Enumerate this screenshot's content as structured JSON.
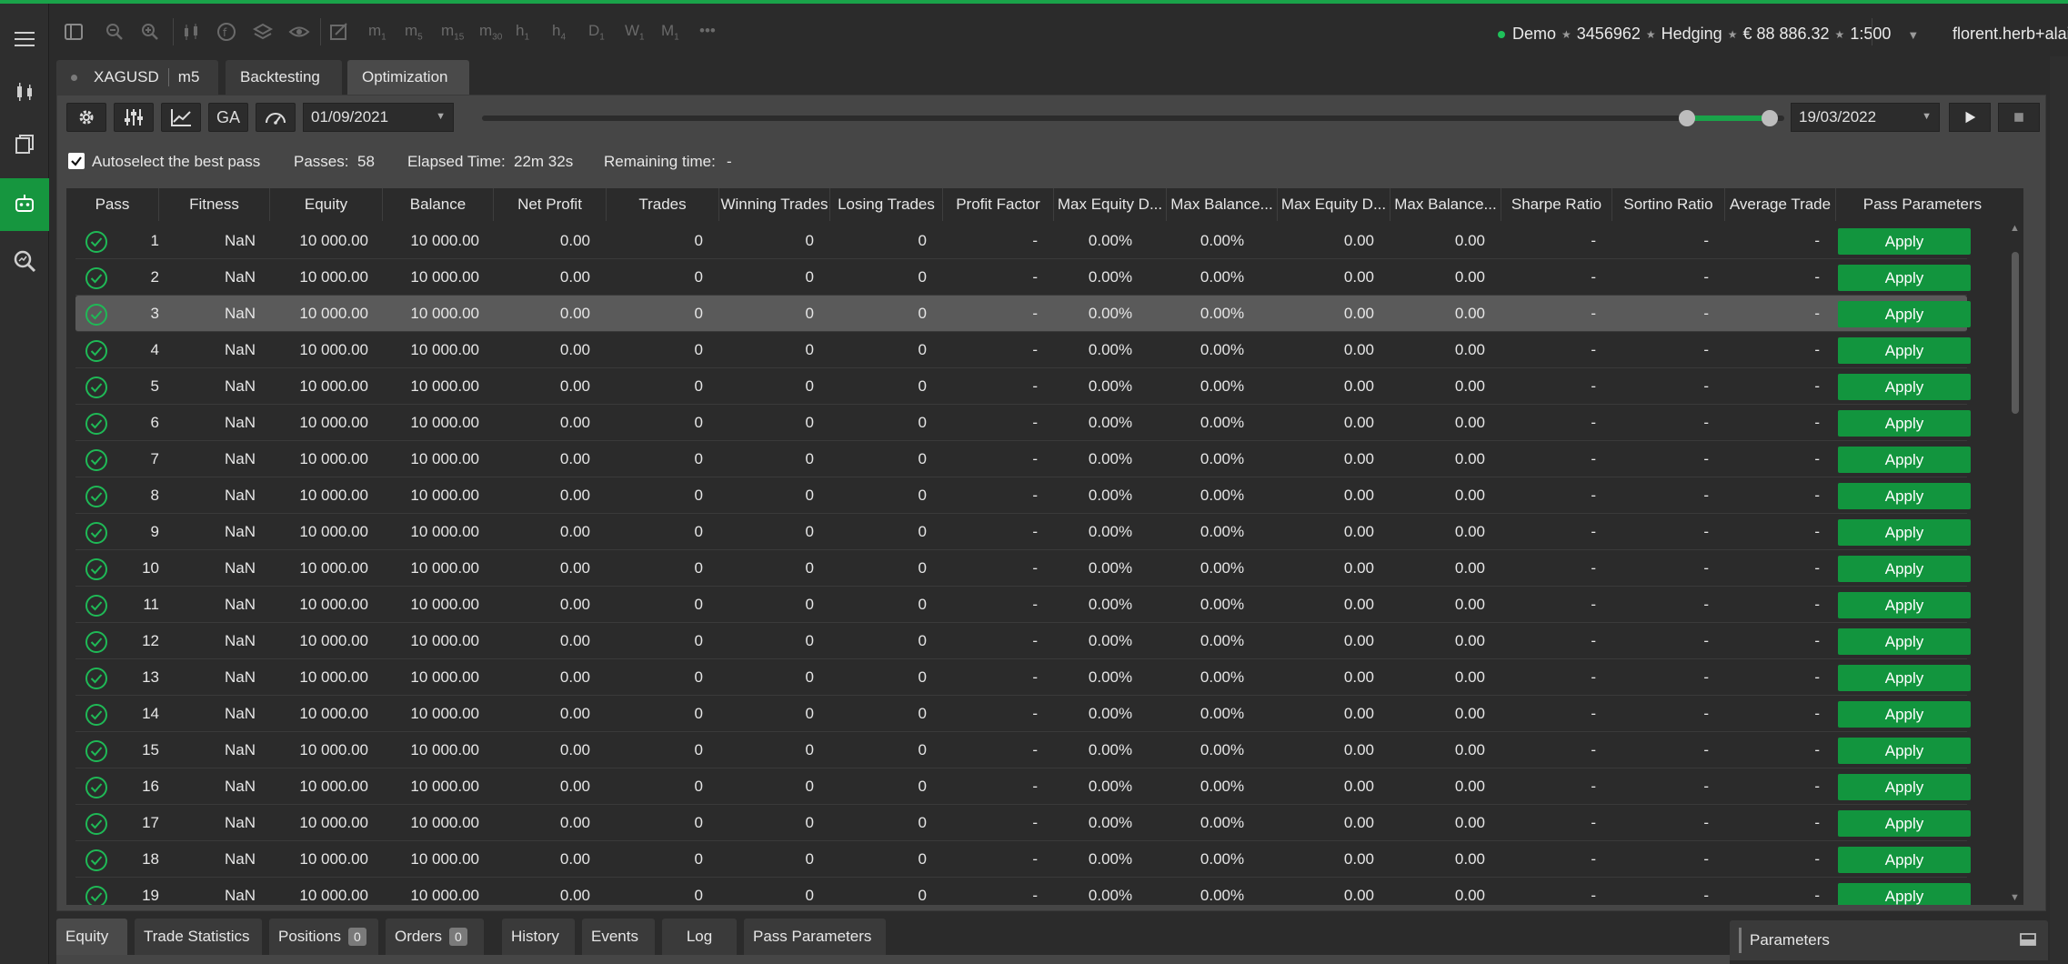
{
  "account": {
    "mode": "Demo",
    "number": "3456962",
    "type": "Hedging",
    "balance": "€ 88 886.32",
    "leverage": "1:500",
    "user": "florent.herb+alain.sanna"
  },
  "timeframes": [
    {
      "label": "m",
      "sub": "1"
    },
    {
      "label": "m",
      "sub": "5"
    },
    {
      "label": "m",
      "sub": "15"
    },
    {
      "label": "m",
      "sub": "30"
    },
    {
      "label": "h",
      "sub": "1"
    },
    {
      "label": "h",
      "sub": "4"
    },
    {
      "label": "D",
      "sub": "1"
    },
    {
      "label": "W",
      "sub": "1"
    },
    {
      "label": "M",
      "sub": "1"
    }
  ],
  "more_label": "•••",
  "tabs": {
    "symbol": "XAGUSD",
    "timeframe": "m5",
    "backtesting": "Backtesting",
    "optimization": "Optimization"
  },
  "controls": {
    "ga_label": "GA",
    "start_date": "01/09/2021",
    "end_date": "19/03/2022",
    "range_start_fraction": 0.925,
    "range_end_fraction": 0.995
  },
  "info": {
    "autoselect_label": "Autoselect the best pass",
    "autoselect_checked": true,
    "passes_label": "Passes:",
    "passes_value": "58",
    "elapsed_label": "Elapsed Time:",
    "elapsed_value": "22m 32s",
    "remaining_label": "Remaining time:",
    "remaining_value": "-"
  },
  "columns": [
    "Pass",
    "Fitness",
    "Equity",
    "Balance",
    "Net Profit",
    "Trades",
    "Winning Trades",
    "Losing Trades",
    "Profit Factor",
    "Max Equity D...",
    "Max Balance...",
    "Max Equity D...",
    "Max Balance...",
    "Sharpe Ratio",
    "Sortino Ratio",
    "Average Trade",
    "Pass Parameters"
  ],
  "apply_label": "Apply",
  "selected_row": 3,
  "rows": [
    {
      "pass": "1",
      "fitness": "NaN",
      "equity": "10 000.00",
      "balance": "10 000.00",
      "net_profit": "0.00",
      "trades": "0",
      "winning": "0",
      "losing": "0",
      "profit_factor": "-",
      "max_eq_pct": "0.00%",
      "max_bal_pct": "0.00%",
      "max_eq": "0.00",
      "max_bal": "0.00",
      "sharpe": "-",
      "sortino": "-",
      "avg_trade": "-"
    },
    {
      "pass": "2",
      "fitness": "NaN",
      "equity": "10 000.00",
      "balance": "10 000.00",
      "net_profit": "0.00",
      "trades": "0",
      "winning": "0",
      "losing": "0",
      "profit_factor": "-",
      "max_eq_pct": "0.00%",
      "max_bal_pct": "0.00%",
      "max_eq": "0.00",
      "max_bal": "0.00",
      "sharpe": "-",
      "sortino": "-",
      "avg_trade": "-"
    },
    {
      "pass": "3",
      "fitness": "NaN",
      "equity": "10 000.00",
      "balance": "10 000.00",
      "net_profit": "0.00",
      "trades": "0",
      "winning": "0",
      "losing": "0",
      "profit_factor": "-",
      "max_eq_pct": "0.00%",
      "max_bal_pct": "0.00%",
      "max_eq": "0.00",
      "max_bal": "0.00",
      "sharpe": "-",
      "sortino": "-",
      "avg_trade": "-"
    },
    {
      "pass": "4",
      "fitness": "NaN",
      "equity": "10 000.00",
      "balance": "10 000.00",
      "net_profit": "0.00",
      "trades": "0",
      "winning": "0",
      "losing": "0",
      "profit_factor": "-",
      "max_eq_pct": "0.00%",
      "max_bal_pct": "0.00%",
      "max_eq": "0.00",
      "max_bal": "0.00",
      "sharpe": "-",
      "sortino": "-",
      "avg_trade": "-"
    },
    {
      "pass": "5",
      "fitness": "NaN",
      "equity": "10 000.00",
      "balance": "10 000.00",
      "net_profit": "0.00",
      "trades": "0",
      "winning": "0",
      "losing": "0",
      "profit_factor": "-",
      "max_eq_pct": "0.00%",
      "max_bal_pct": "0.00%",
      "max_eq": "0.00",
      "max_bal": "0.00",
      "sharpe": "-",
      "sortino": "-",
      "avg_trade": "-"
    },
    {
      "pass": "6",
      "fitness": "NaN",
      "equity": "10 000.00",
      "balance": "10 000.00",
      "net_profit": "0.00",
      "trades": "0",
      "winning": "0",
      "losing": "0",
      "profit_factor": "-",
      "max_eq_pct": "0.00%",
      "max_bal_pct": "0.00%",
      "max_eq": "0.00",
      "max_bal": "0.00",
      "sharpe": "-",
      "sortino": "-",
      "avg_trade": "-"
    },
    {
      "pass": "7",
      "fitness": "NaN",
      "equity": "10 000.00",
      "balance": "10 000.00",
      "net_profit": "0.00",
      "trades": "0",
      "winning": "0",
      "losing": "0",
      "profit_factor": "-",
      "max_eq_pct": "0.00%",
      "max_bal_pct": "0.00%",
      "max_eq": "0.00",
      "max_bal": "0.00",
      "sharpe": "-",
      "sortino": "-",
      "avg_trade": "-"
    },
    {
      "pass": "8",
      "fitness": "NaN",
      "equity": "10 000.00",
      "balance": "10 000.00",
      "net_profit": "0.00",
      "trades": "0",
      "winning": "0",
      "losing": "0",
      "profit_factor": "-",
      "max_eq_pct": "0.00%",
      "max_bal_pct": "0.00%",
      "max_eq": "0.00",
      "max_bal": "0.00",
      "sharpe": "-",
      "sortino": "-",
      "avg_trade": "-"
    },
    {
      "pass": "9",
      "fitness": "NaN",
      "equity": "10 000.00",
      "balance": "10 000.00",
      "net_profit": "0.00",
      "trades": "0",
      "winning": "0",
      "losing": "0",
      "profit_factor": "-",
      "max_eq_pct": "0.00%",
      "max_bal_pct": "0.00%",
      "max_eq": "0.00",
      "max_bal": "0.00",
      "sharpe": "-",
      "sortino": "-",
      "avg_trade": "-"
    },
    {
      "pass": "10",
      "fitness": "NaN",
      "equity": "10 000.00",
      "balance": "10 000.00",
      "net_profit": "0.00",
      "trades": "0",
      "winning": "0",
      "losing": "0",
      "profit_factor": "-",
      "max_eq_pct": "0.00%",
      "max_bal_pct": "0.00%",
      "max_eq": "0.00",
      "max_bal": "0.00",
      "sharpe": "-",
      "sortino": "-",
      "avg_trade": "-"
    },
    {
      "pass": "11",
      "fitness": "NaN",
      "equity": "10 000.00",
      "balance": "10 000.00",
      "net_profit": "0.00",
      "trades": "0",
      "winning": "0",
      "losing": "0",
      "profit_factor": "-",
      "max_eq_pct": "0.00%",
      "max_bal_pct": "0.00%",
      "max_eq": "0.00",
      "max_bal": "0.00",
      "sharpe": "-",
      "sortino": "-",
      "avg_trade": "-"
    },
    {
      "pass": "12",
      "fitness": "NaN",
      "equity": "10 000.00",
      "balance": "10 000.00",
      "net_profit": "0.00",
      "trades": "0",
      "winning": "0",
      "losing": "0",
      "profit_factor": "-",
      "max_eq_pct": "0.00%",
      "max_bal_pct": "0.00%",
      "max_eq": "0.00",
      "max_bal": "0.00",
      "sharpe": "-",
      "sortino": "-",
      "avg_trade": "-"
    },
    {
      "pass": "13",
      "fitness": "NaN",
      "equity": "10 000.00",
      "balance": "10 000.00",
      "net_profit": "0.00",
      "trades": "0",
      "winning": "0",
      "losing": "0",
      "profit_factor": "-",
      "max_eq_pct": "0.00%",
      "max_bal_pct": "0.00%",
      "max_eq": "0.00",
      "max_bal": "0.00",
      "sharpe": "-",
      "sortino": "-",
      "avg_trade": "-"
    },
    {
      "pass": "14",
      "fitness": "NaN",
      "equity": "10 000.00",
      "balance": "10 000.00",
      "net_profit": "0.00",
      "trades": "0",
      "winning": "0",
      "losing": "0",
      "profit_factor": "-",
      "max_eq_pct": "0.00%",
      "max_bal_pct": "0.00%",
      "max_eq": "0.00",
      "max_bal": "0.00",
      "sharpe": "-",
      "sortino": "-",
      "avg_trade": "-"
    },
    {
      "pass": "15",
      "fitness": "NaN",
      "equity": "10 000.00",
      "balance": "10 000.00",
      "net_profit": "0.00",
      "trades": "0",
      "winning": "0",
      "losing": "0",
      "profit_factor": "-",
      "max_eq_pct": "0.00%",
      "max_bal_pct": "0.00%",
      "max_eq": "0.00",
      "max_bal": "0.00",
      "sharpe": "-",
      "sortino": "-",
      "avg_trade": "-"
    },
    {
      "pass": "16",
      "fitness": "NaN",
      "equity": "10 000.00",
      "balance": "10 000.00",
      "net_profit": "0.00",
      "trades": "0",
      "winning": "0",
      "losing": "0",
      "profit_factor": "-",
      "max_eq_pct": "0.00%",
      "max_bal_pct": "0.00%",
      "max_eq": "0.00",
      "max_bal": "0.00",
      "sharpe": "-",
      "sortino": "-",
      "avg_trade": "-"
    },
    {
      "pass": "17",
      "fitness": "NaN",
      "equity": "10 000.00",
      "balance": "10 000.00",
      "net_profit": "0.00",
      "trades": "0",
      "winning": "0",
      "losing": "0",
      "profit_factor": "-",
      "max_eq_pct": "0.00%",
      "max_bal_pct": "0.00%",
      "max_eq": "0.00",
      "max_bal": "0.00",
      "sharpe": "-",
      "sortino": "-",
      "avg_trade": "-"
    },
    {
      "pass": "18",
      "fitness": "NaN",
      "equity": "10 000.00",
      "balance": "10 000.00",
      "net_profit": "0.00",
      "trades": "0",
      "winning": "0",
      "losing": "0",
      "profit_factor": "-",
      "max_eq_pct": "0.00%",
      "max_bal_pct": "0.00%",
      "max_eq": "0.00",
      "max_bal": "0.00",
      "sharpe": "-",
      "sortino": "-",
      "avg_trade": "-"
    },
    {
      "pass": "19",
      "fitness": "NaN",
      "equity": "10 000.00",
      "balance": "10 000.00",
      "net_profit": "0.00",
      "trades": "0",
      "winning": "0",
      "losing": "0",
      "profit_factor": "-",
      "max_eq_pct": "0.00%",
      "max_bal_pct": "0.00%",
      "max_eq": "0.00",
      "max_bal": "0.00",
      "sharpe": "-",
      "sortino": "-",
      "avg_trade": "-"
    }
  ],
  "bottom_tabs": {
    "equity": "Equity",
    "trade_statistics": "Trade Statistics",
    "positions": "Positions",
    "positions_count": "0",
    "orders": "Orders",
    "orders_count": "0",
    "history": "History",
    "events": "Events",
    "log": "Log",
    "pass_parameters": "Pass Parameters"
  },
  "parameters_panel_title": "Parameters",
  "colors": {
    "accent": "#1aa34a",
    "apply_button": "#12953e",
    "background": "#2b2b2b",
    "panel": "#464646"
  }
}
